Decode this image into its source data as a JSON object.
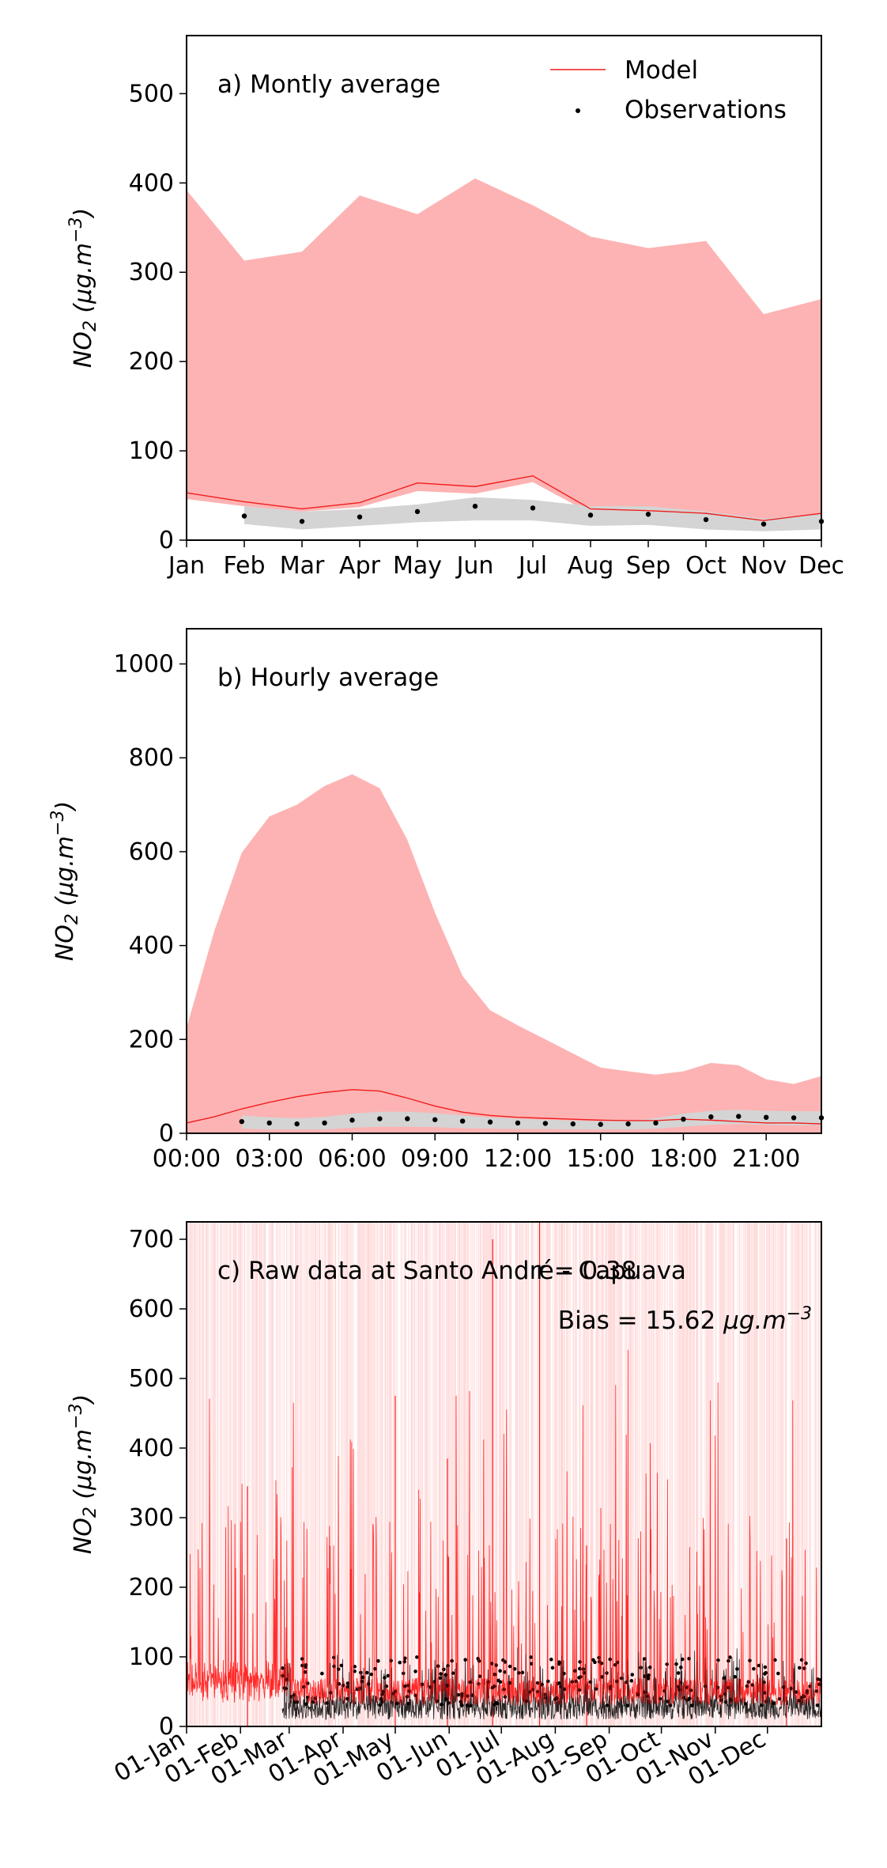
{
  "colors": {
    "model_fill": "#fdb3b3",
    "model_line": "#f21d1d",
    "obs_fill": "#d4d4d4",
    "obs_point": "#000000",
    "raw_model": "#ff1a1a"
  },
  "legend": {
    "model": "Model",
    "observations": "Observations"
  },
  "chart_data": [
    {
      "type": "area",
      "panel": "a) Montly average",
      "ylabel": "NO2 (μg.m−3)",
      "xlabel": "",
      "ylim": [
        0,
        565
      ],
      "yticks": [
        0,
        100,
        200,
        300,
        400,
        500
      ],
      "categories": [
        "Jan",
        "Feb",
        "Mar",
        "Apr",
        "May",
        "Jun",
        "Jul",
        "Aug",
        "Sep",
        "Oct",
        "Nov",
        "Dec"
      ],
      "series": [
        {
          "name": "Model",
          "values": [
            53,
            43,
            35,
            42,
            64,
            60,
            72,
            35,
            33,
            30,
            22,
            30
          ],
          "upper": [
            392,
            313,
            323,
            386,
            365,
            405,
            375,
            340,
            327,
            335,
            253,
            270
          ],
          "lower": [
            46,
            38,
            32,
            37,
            55,
            52,
            65,
            30,
            28,
            25,
            18,
            25
          ]
        },
        {
          "name": "Observations",
          "values": [
            null,
            27,
            21,
            26,
            32,
            38,
            36,
            28,
            29,
            23,
            18,
            21
          ],
          "upper": [
            null,
            38,
            32,
            35,
            40,
            48,
            45,
            38,
            38,
            32,
            24,
            30
          ],
          "lower": [
            null,
            18,
            12,
            16,
            20,
            22,
            22,
            16,
            17,
            12,
            10,
            12
          ]
        }
      ],
      "grid": false,
      "legend_position": "top-right"
    },
    {
      "type": "area",
      "panel": "b) Hourly average",
      "ylabel": "NO2 (μg.m−3)",
      "xlabel": "",
      "ylim": [
        0,
        1075
      ],
      "yticks": [
        0,
        200,
        400,
        600,
        800,
        1000
      ],
      "x_tick_labels": [
        "00:00",
        "03:00",
        "06:00",
        "09:00",
        "12:00",
        "15:00",
        "18:00",
        "21:00"
      ],
      "x": [
        0,
        1,
        2,
        3,
        4,
        5,
        6,
        7,
        8,
        9,
        10,
        11,
        12,
        13,
        14,
        15,
        16,
        17,
        18,
        19,
        20,
        21,
        22,
        23
      ],
      "series": [
        {
          "name": "Model",
          "values": [
            22,
            35,
            52,
            66,
            78,
            87,
            93,
            90,
            75,
            58,
            45,
            38,
            34,
            32,
            30,
            28,
            27,
            27,
            30,
            28,
            25,
            22,
            22,
            20
          ],
          "upper": [
            225,
            430,
            598,
            675,
            700,
            740,
            765,
            735,
            625,
            470,
            335,
            262,
            230,
            200,
            170,
            140,
            132,
            125,
            132,
            150,
            145,
            115,
            105,
            122
          ],
          "lower": [
            0,
            0,
            0,
            0,
            0,
            0,
            0,
            0,
            0,
            0,
            0,
            0,
            0,
            0,
            0,
            0,
            0,
            0,
            0,
            0,
            0,
            0,
            0,
            0
          ]
        },
        {
          "name": "Observations",
          "values": [
            null,
            null,
            25,
            22,
            20,
            22,
            28,
            31,
            31,
            29,
            26,
            24,
            22,
            21,
            20,
            19,
            20,
            22,
            30,
            35,
            36,
            34,
            33,
            33
          ],
          "upper": [
            null,
            null,
            38,
            34,
            32,
            35,
            42,
            46,
            46,
            43,
            38,
            34,
            31,
            29,
            27,
            26,
            27,
            32,
            42,
            48,
            50,
            48,
            47,
            47
          ],
          "lower": [
            null,
            null,
            10,
            8,
            8,
            8,
            12,
            14,
            14,
            13,
            11,
            10,
            9,
            9,
            8,
            8,
            8,
            10,
            14,
            18,
            20,
            18,
            17,
            17
          ]
        }
      ],
      "grid": false
    },
    {
      "type": "line",
      "panel": "c) Raw data at Santo André - Capuava",
      "annotations": [
        "r = 0.38",
        "Bias = 15.62 μg.m−3"
      ],
      "ylabel": "NO2 (μg.m−3)",
      "xlabel": "",
      "ylim": [
        0,
        725
      ],
      "yticks": [
        0,
        100,
        200,
        300,
        400,
        500,
        600,
        700
      ],
      "x_tick_labels": [
        "01-Jan",
        "01-Feb",
        "01-Mar",
        "01-Apr",
        "01-May",
        "01-Jun",
        "01-Jul",
        "01-Aug",
        "01-Sep",
        "01-Oct",
        "01-Nov",
        "01-Dec"
      ],
      "x_tick_days": [
        0,
        31,
        59,
        90,
        120,
        151,
        181,
        212,
        243,
        273,
        304,
        334
      ],
      "x_range_days": [
        0,
        365
      ],
      "series": [
        {
          "name": "Model",
          "note": "hourly series, mostly 10–120 with spikes up to ~700"
        },
        {
          "name": "Observations",
          "note": "hourly series from early Mar, mostly 5–100"
        }
      ],
      "grid": false
    }
  ]
}
